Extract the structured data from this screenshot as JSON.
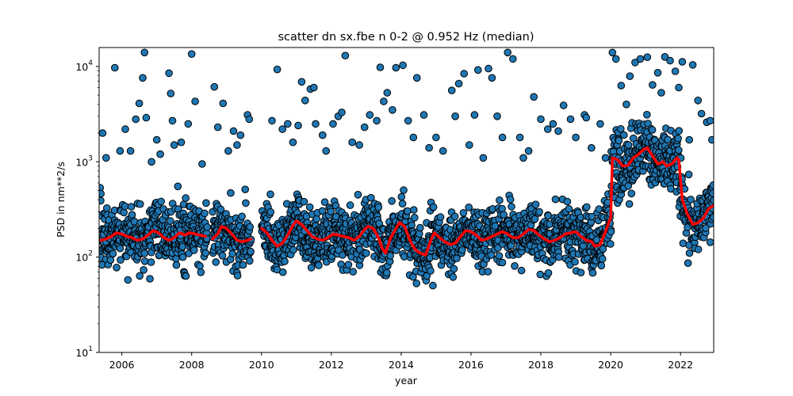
{
  "chart_data": {
    "type": "scatter",
    "title": "scatter dn sx.fbe n 0-2 @ 0.952 Hz (median)",
    "xlabel": "year",
    "ylabel": "PSD in nm**2/s",
    "xlim": [
      2005.35,
      2022.95
    ],
    "ylim": [
      10,
      15800
    ],
    "yscale": "log",
    "grid": false,
    "x_ticks": [
      {
        "value": 2006,
        "label": "2006"
      },
      {
        "value": 2008,
        "label": "2008"
      },
      {
        "value": 2010,
        "label": "2010"
      },
      {
        "value": 2012,
        "label": "2012"
      },
      {
        "value": 2014,
        "label": "2014"
      },
      {
        "value": 2016,
        "label": "2016"
      },
      {
        "value": 2018,
        "label": "2018"
      },
      {
        "value": 2020,
        "label": "2020"
      },
      {
        "value": 2022,
        "label": "2022"
      }
    ],
    "y_ticks": [
      {
        "value": 10,
        "base": "10",
        "exp": "1"
      },
      {
        "value": 100,
        "base": "10",
        "exp": "2"
      },
      {
        "value": 1000,
        "base": "10",
        "exp": "3"
      },
      {
        "value": 10000,
        "base": "10",
        "exp": "4"
      }
    ],
    "data_gaps": [
      [
        2008.45,
        2008.6
      ],
      [
        2009.7,
        2010.0
      ]
    ],
    "series": [
      {
        "kind": "scatter",
        "marker_fill": "#1f77b4",
        "marker_edge": "#000000",
        "points": [
          [
            2005.45,
            2000
          ],
          [
            2005.55,
            1100
          ],
          [
            2005.8,
            9700
          ],
          [
            2005.95,
            1300
          ],
          [
            2006.1,
            2200
          ],
          [
            2006.25,
            1300
          ],
          [
            2006.4,
            2800
          ],
          [
            2006.5,
            4100
          ],
          [
            2006.6,
            7600
          ],
          [
            2006.65,
            14000
          ],
          [
            2006.7,
            2900
          ],
          [
            2006.85,
            1000
          ],
          [
            2007.0,
            1700
          ],
          [
            2007.1,
            1200
          ],
          [
            2007.35,
            8500
          ],
          [
            2007.4,
            5200
          ],
          [
            2007.45,
            2700
          ],
          [
            2007.5,
            1500
          ],
          [
            2007.7,
            1600
          ],
          [
            2007.9,
            2500
          ],
          [
            2008.0,
            13500
          ],
          [
            2008.1,
            4300
          ],
          [
            2008.3,
            950
          ],
          [
            2008.65,
            6100
          ],
          [
            2008.75,
            2300
          ],
          [
            2008.9,
            4100
          ],
          [
            2009.05,
            1300
          ],
          [
            2009.2,
            2100
          ],
          [
            2009.3,
            1500
          ],
          [
            2009.4,
            1900
          ],
          [
            2009.6,
            3100
          ],
          [
            2009.65,
            2800
          ],
          [
            2010.3,
            2700
          ],
          [
            2010.45,
            9300
          ],
          [
            2010.6,
            2200
          ],
          [
            2010.75,
            2500
          ],
          [
            2010.9,
            1600
          ],
          [
            2011.05,
            2400
          ],
          [
            2011.15,
            6900
          ],
          [
            2011.25,
            4400
          ],
          [
            2011.4,
            5800
          ],
          [
            2011.5,
            6000
          ],
          [
            2011.55,
            2500
          ],
          [
            2011.75,
            1900
          ],
          [
            2011.85,
            1300
          ],
          [
            2012.05,
            2500
          ],
          [
            2012.2,
            3000
          ],
          [
            2012.3,
            3300
          ],
          [
            2012.4,
            13000
          ],
          [
            2012.6,
            1600
          ],
          [
            2012.8,
            1500
          ],
          [
            2012.95,
            2300
          ],
          [
            2013.1,
            3100
          ],
          [
            2013.3,
            2700
          ],
          [
            2013.4,
            9800
          ],
          [
            2013.5,
            4300
          ],
          [
            2013.6,
            5300
          ],
          [
            2013.75,
            3500
          ],
          [
            2013.85,
            9700
          ],
          [
            2014.05,
            10300
          ],
          [
            2014.2,
            2700
          ],
          [
            2014.35,
            1800
          ],
          [
            2014.45,
            7600
          ],
          [
            2014.65,
            3100
          ],
          [
            2014.8,
            1400
          ],
          [
            2015.0,
            1800
          ],
          [
            2015.2,
            1300
          ],
          [
            2015.45,
            5600
          ],
          [
            2015.55,
            3000
          ],
          [
            2015.65,
            6600
          ],
          [
            2015.8,
            8400
          ],
          [
            2015.95,
            1500
          ],
          [
            2016.1,
            3100
          ],
          [
            2016.2,
            9200
          ],
          [
            2016.35,
            1100
          ],
          [
            2016.5,
            9500
          ],
          [
            2016.6,
            7600
          ],
          [
            2016.75,
            3000
          ],
          [
            2016.9,
            1800
          ],
          [
            2017.05,
            14000
          ],
          [
            2017.2,
            12000
          ],
          [
            2017.4,
            1800
          ],
          [
            2017.5,
            1100
          ],
          [
            2017.65,
            1300
          ],
          [
            2017.8,
            4800
          ],
          [
            2018.0,
            2800
          ],
          [
            2018.2,
            2200
          ],
          [
            2018.35,
            2500
          ],
          [
            2018.5,
            2100
          ],
          [
            2018.65,
            3900
          ],
          [
            2018.85,
            2800
          ],
          [
            2019.0,
            1800
          ],
          [
            2019.25,
            3100
          ],
          [
            2019.3,
            2900
          ],
          [
            2019.45,
            1400
          ],
          [
            2019.7,
            2500
          ],
          [
            2019.85,
            1100
          ],
          [
            2020.05,
            14000
          ],
          [
            2020.15,
            12000
          ],
          [
            2020.3,
            6300
          ],
          [
            2020.45,
            4000
          ],
          [
            2020.55,
            7900
          ],
          [
            2020.7,
            11000
          ],
          [
            2020.85,
            12000
          ],
          [
            2021.05,
            12500
          ],
          [
            2021.2,
            6400
          ],
          [
            2021.35,
            8600
          ],
          [
            2021.45,
            5300
          ],
          [
            2021.55,
            12600
          ],
          [
            2021.7,
            11500
          ],
          [
            2021.85,
            8900
          ],
          [
            2021.95,
            6000
          ],
          [
            2022.05,
            11200
          ],
          [
            2022.25,
            1700
          ],
          [
            2022.35,
            10400
          ],
          [
            2022.5,
            4400
          ],
          [
            2022.6,
            3200
          ],
          [
            2022.75,
            2600
          ],
          [
            2022.85,
            2700
          ],
          [
            2022.9,
            1700
          ]
        ]
      },
      {
        "kind": "line",
        "color": "#ff0000",
        "segments": [
          [
            [
              2005.4,
              150
            ],
            [
              2005.55,
              155
            ],
            [
              2005.7,
              165
            ],
            [
              2005.85,
              180
            ],
            [
              2006.0,
              175
            ],
            [
              2006.15,
              165
            ],
            [
              2006.3,
              160
            ],
            [
              2006.45,
              150
            ],
            [
              2006.6,
              155
            ],
            [
              2006.75,
              170
            ],
            [
              2006.9,
              190
            ],
            [
              2007.05,
              180
            ],
            [
              2007.2,
              160
            ],
            [
              2007.35,
              150
            ],
            [
              2007.5,
              160
            ],
            [
              2007.65,
              180
            ],
            [
              2007.8,
              170
            ],
            [
              2007.95,
              180
            ],
            [
              2008.1,
              175
            ],
            [
              2008.25,
              170
            ],
            [
              2008.4,
              165
            ]
          ],
          [
            [
              2008.6,
              155
            ],
            [
              2008.75,
              175
            ],
            [
              2008.85,
              210
            ],
            [
              2009.0,
              200
            ],
            [
              2009.15,
              175
            ],
            [
              2009.3,
              150
            ],
            [
              2009.45,
              145
            ],
            [
              2009.6,
              150
            ],
            [
              2009.7,
              155
            ]
          ],
          [
            [
              2010.0,
              200
            ],
            [
              2010.15,
              180
            ],
            [
              2010.3,
              150
            ],
            [
              2010.45,
              130
            ],
            [
              2010.6,
              140
            ],
            [
              2010.75,
              170
            ],
            [
              2010.9,
              215
            ],
            [
              2011.0,
              240
            ],
            [
              2011.15,
              220
            ],
            [
              2011.3,
              190
            ],
            [
              2011.45,
              165
            ],
            [
              2011.6,
              155
            ],
            [
              2011.75,
              150
            ],
            [
              2011.9,
              160
            ],
            [
              2012.05,
              175
            ],
            [
              2012.2,
              170
            ],
            [
              2012.35,
              165
            ],
            [
              2012.5,
              160
            ],
            [
              2012.65,
              150
            ],
            [
              2012.8,
              165
            ],
            [
              2012.95,
              195
            ],
            [
              2013.05,
              210
            ],
            [
              2013.2,
              200
            ],
            [
              2013.35,
              160
            ],
            [
              2013.45,
              125
            ],
            [
              2013.55,
              110
            ],
            [
              2013.7,
              160
            ],
            [
              2013.85,
              200
            ],
            [
              2013.95,
              230
            ],
            [
              2014.1,
              210
            ],
            [
              2014.25,
              150
            ],
            [
              2014.4,
              120
            ],
            [
              2014.55,
              110
            ],
            [
              2014.7,
              105
            ],
            [
              2014.85,
              150
            ],
            [
              2014.95,
              180
            ],
            [
              2015.1,
              160
            ],
            [
              2015.25,
              145
            ],
            [
              2015.4,
              135
            ],
            [
              2015.55,
              140
            ],
            [
              2015.7,
              165
            ],
            [
              2015.85,
              190
            ],
            [
              2016.0,
              185
            ],
            [
              2016.15,
              170
            ],
            [
              2016.3,
              150
            ],
            [
              2016.45,
              155
            ],
            [
              2016.6,
              165
            ],
            [
              2016.75,
              175
            ],
            [
              2016.9,
              185
            ],
            [
              2017.05,
              175
            ],
            [
              2017.2,
              160
            ],
            [
              2017.35,
              160
            ],
            [
              2017.5,
              175
            ],
            [
              2017.65,
              195
            ],
            [
              2017.8,
              190
            ],
            [
              2017.95,
              170
            ],
            [
              2018.1,
              155
            ],
            [
              2018.25,
              145
            ],
            [
              2018.4,
              150
            ],
            [
              2018.55,
              160
            ],
            [
              2018.7,
              175
            ],
            [
              2018.85,
              180
            ],
            [
              2019.0,
              185
            ],
            [
              2019.15,
              165
            ],
            [
              2019.3,
              150
            ],
            [
              2019.45,
              145
            ],
            [
              2019.55,
              130
            ],
            [
              2019.7,
              135
            ],
            [
              2019.85,
              185
            ],
            [
              2020.0,
              260
            ],
            [
              2020.05,
              1100
            ],
            [
              2020.2,
              1050
            ],
            [
              2020.35,
              900
            ],
            [
              2020.5,
              920
            ],
            [
              2020.65,
              1100
            ],
            [
              2020.8,
              1200
            ],
            [
              2020.95,
              1350
            ],
            [
              2021.05,
              1400
            ],
            [
              2021.2,
              1150
            ],
            [
              2021.35,
              950
            ],
            [
              2021.5,
              1000
            ],
            [
              2021.6,
              900
            ],
            [
              2021.75,
              950
            ],
            [
              2021.9,
              1100
            ],
            [
              2021.95,
              1050
            ],
            [
              2022.05,
              400
            ],
            [
              2022.2,
              280
            ],
            [
              2022.35,
              220
            ],
            [
              2022.5,
              230
            ],
            [
              2022.65,
              255
            ],
            [
              2022.8,
              320
            ],
            [
              2022.95,
              350
            ]
          ]
        ]
      }
    ]
  }
}
